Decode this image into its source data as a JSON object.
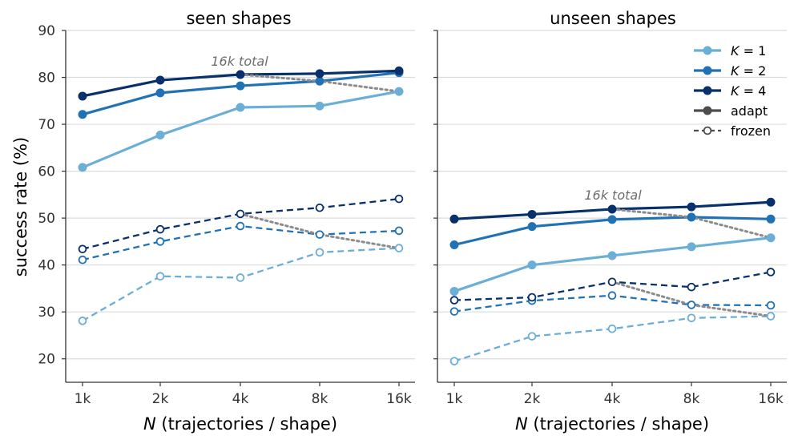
{
  "figure": {
    "ylabel": "success rate (%)",
    "xlabel_var": "N",
    "xlabel_rest": " (trajectories / shape)"
  },
  "legend": {
    "entries": [
      {
        "label_var": "K",
        "label_rest": " = 1",
        "color": "#6baed6",
        "marker": "filled",
        "line": "solid"
      },
      {
        "label_var": "K",
        "label_rest": " = 2",
        "color": "#2171b5",
        "marker": "filled",
        "line": "solid"
      },
      {
        "label_var": "K",
        "label_rest": " = 4",
        "color": "#08306b",
        "marker": "filled",
        "line": "solid"
      },
      {
        "label": "adapt",
        "color": "#4d4d4d",
        "marker": "filled",
        "line": "solid"
      },
      {
        "label": "frozen",
        "color": "#4d4d4d",
        "marker": "open",
        "line": "dashed"
      }
    ]
  },
  "chart_data": [
    {
      "type": "line",
      "title": "seen shapes",
      "x_tick_labels": [
        "1k",
        "2k",
        "4k",
        "8k",
        "16k"
      ],
      "x_scale": "log2",
      "ylim": [
        15,
        90
      ],
      "y_ticks": [
        20,
        30,
        40,
        50,
        60,
        70,
        80,
        90
      ],
      "grid": "horizontal",
      "annotation": "16k total",
      "series": [
        {
          "name": "K = 1",
          "mode": "adapt",
          "color": "#6baed6",
          "values": [
            60.8,
            67.7,
            73.6,
            73.9,
            77.0
          ]
        },
        {
          "name": "K = 2",
          "mode": "adapt",
          "color": "#2171b5",
          "values": [
            72.1,
            76.7,
            78.2,
            79.2,
            81.0
          ]
        },
        {
          "name": "K = 4",
          "mode": "adapt",
          "color": "#08306b",
          "values": [
            76.0,
            79.4,
            80.6,
            80.8,
            81.4
          ]
        },
        {
          "name": "K = 1",
          "mode": "frozen",
          "color": "#6baed6",
          "values": [
            28.1,
            37.6,
            37.3,
            42.7,
            43.6
          ]
        },
        {
          "name": "K = 2",
          "mode": "frozen",
          "color": "#2171b5",
          "values": [
            41.1,
            45.0,
            48.3,
            46.5,
            47.3
          ]
        },
        {
          "name": "K = 4",
          "mode": "frozen",
          "color": "#08306b",
          "values": [
            43.4,
            47.6,
            50.9,
            52.2,
            54.1
          ]
        }
      ],
      "budget_lines": [
        {
          "x": [
            "4k",
            "8k",
            "16k"
          ],
          "y": [
            80.6,
            79.2,
            77.0
          ]
        },
        {
          "x": [
            "4k",
            "8k",
            "16k"
          ],
          "y": [
            50.9,
            46.5,
            43.6
          ]
        }
      ]
    },
    {
      "type": "line",
      "title": "unseen shapes",
      "x_tick_labels": [
        "1k",
        "2k",
        "4k",
        "8k",
        "16k"
      ],
      "x_scale": "log2",
      "ylim": [
        15,
        90
      ],
      "y_ticks": [
        20,
        30,
        40,
        50,
        60,
        70,
        80,
        90
      ],
      "grid": "horizontal",
      "annotation": "16k total",
      "series": [
        {
          "name": "K = 1",
          "mode": "adapt",
          "color": "#6baed6",
          "values": [
            34.4,
            40.0,
            42.0,
            43.9,
            45.8
          ]
        },
        {
          "name": "K = 2",
          "mode": "adapt",
          "color": "#2171b5",
          "values": [
            44.3,
            48.2,
            49.7,
            50.2,
            49.8
          ]
        },
        {
          "name": "K = 4",
          "mode": "adapt",
          "color": "#08306b",
          "values": [
            49.8,
            50.8,
            51.9,
            52.4,
            53.4
          ]
        },
        {
          "name": "K = 1",
          "mode": "frozen",
          "color": "#6baed6",
          "values": [
            19.5,
            24.8,
            26.4,
            28.7,
            29.1
          ]
        },
        {
          "name": "K = 2",
          "mode": "frozen",
          "color": "#2171b5",
          "values": [
            30.1,
            32.4,
            33.5,
            31.5,
            31.4
          ]
        },
        {
          "name": "K = 4",
          "mode": "frozen",
          "color": "#08306b",
          "values": [
            32.5,
            33.1,
            36.4,
            35.3,
            38.5
          ]
        }
      ],
      "budget_lines": [
        {
          "x": [
            "4k",
            "8k",
            "16k"
          ],
          "y": [
            51.9,
            50.2,
            45.8
          ]
        },
        {
          "x": [
            "4k",
            "8k",
            "16k"
          ],
          "y": [
            36.4,
            31.5,
            29.1
          ]
        }
      ]
    }
  ]
}
